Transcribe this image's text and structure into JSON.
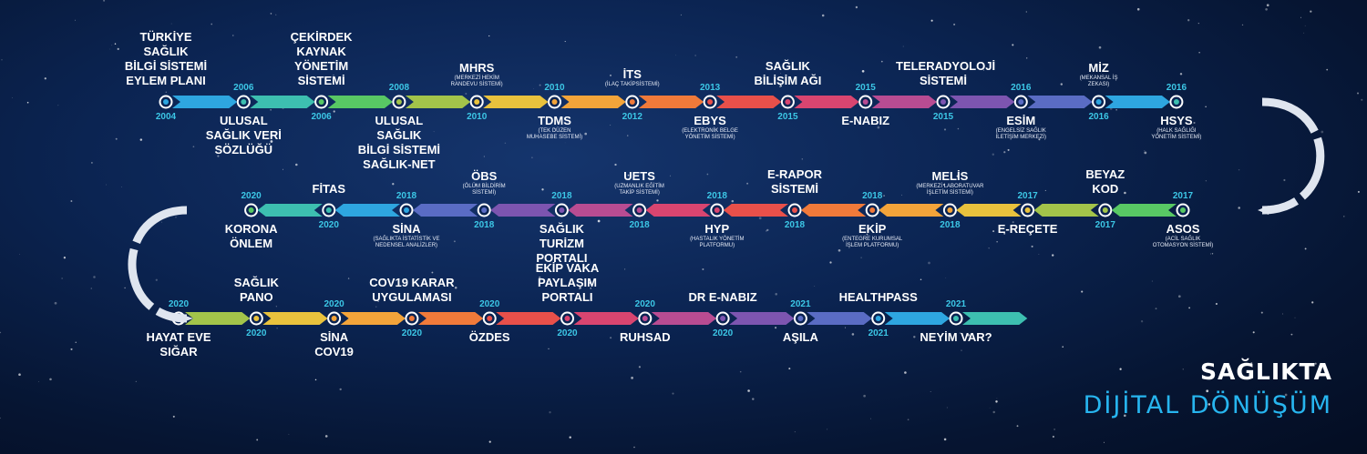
{
  "colors": {
    "background": "#071634",
    "palette": [
      "#2ea6e0",
      "#3dbfb0",
      "#58c864",
      "#a3c44a",
      "#e9c23d",
      "#f3a43a",
      "#f07a3a",
      "#e8504a",
      "#d94570",
      "#b84c92",
      "#7d55b0",
      "#5a6cc4"
    ],
    "brand_dynamic": "#27b5ef"
  },
  "brand": {
    "line1": "SAĞLIKTA",
    "line2": "DİJİTAL DÖNÜŞÜM"
  },
  "rows": [
    {
      "direction": "ltr",
      "items": [
        {
          "name": "TÜRKİYE SAĞLIK\nBİLGİ SİSTEMİ\nEYLEM PLANI",
          "year": "2004",
          "label_pos": "above",
          "year_pos": "below"
        },
        {
          "name": "ULUSAL\nSAĞLIK VERİ\nSÖZLÜĞÜ",
          "year": "2006",
          "label_pos": "below",
          "year_pos": "above"
        },
        {
          "name": "ÇEKİRDEK\nKAYNAK YÖNETİM\nSİSTEMİ",
          "year": "2006",
          "label_pos": "above",
          "year_pos": "below"
        },
        {
          "name": "ULUSAL SAĞLIK\nBİLGİ SİSTEMİ\nSAĞLIK-NET",
          "year": "2008",
          "label_pos": "below",
          "year_pos": "above"
        },
        {
          "name": "MHRS",
          "sub": "(MERKEZİ HEKİM\nRANDEVU SİSTEMİ)",
          "year": "2010",
          "label_pos": "above",
          "year_pos": "below"
        },
        {
          "name": "TDMS",
          "sub": "(TEK DÜZEN\nMUHASEBE SİSTEMİ)",
          "year": "2010",
          "label_pos": "below",
          "year_pos": "above"
        },
        {
          "name": "İTS",
          "sub": "(İLAÇ TAKİPSİSTEMİ)",
          "year": "2012",
          "label_pos": "above",
          "year_pos": "below"
        },
        {
          "name": "EBYS",
          "sub": "(ELEKTRONİK BELGE\nYÖNETİM SİSTEMİ)",
          "year": "2013",
          "label_pos": "below",
          "year_pos": "above"
        },
        {
          "name": "SAĞLIK\nBİLİŞİM AĞI",
          "year": "2015",
          "label_pos": "above",
          "year_pos": "below"
        },
        {
          "name": "E-NABIZ",
          "year": "2015",
          "label_pos": "below",
          "year_pos": "above"
        },
        {
          "name": "TELERADYOLOJİ\nSİSTEMİ",
          "year": "2015",
          "label_pos": "above",
          "year_pos": "below"
        },
        {
          "name": "ESİM",
          "sub": "(ENGELSİZ SAĞLIK\nİLETİŞİM MERKEZİ)",
          "year": "2016",
          "label_pos": "below",
          "year_pos": "above"
        },
        {
          "name": "MİZ",
          "sub": "(MEKANSAL İŞ\nZEKASI)",
          "year": "2016",
          "label_pos": "above",
          "year_pos": "below"
        },
        {
          "name": "HSYS",
          "sub": "(HALK SAĞLIĞI\nYÖNETİM SİSTEMİ)",
          "year": "2016",
          "label_pos": "below",
          "year_pos": "above"
        }
      ]
    },
    {
      "direction": "rtl",
      "items": [
        {
          "name": "ASOS",
          "sub": "(ACİL SAĞLIK\nOTOMASYON SİSTEMİ)",
          "year": "2017",
          "label_pos": "below",
          "year_pos": "above"
        },
        {
          "name": "BEYAZ\nKOD",
          "year": "2017",
          "label_pos": "above",
          "year_pos": "below"
        },
        {
          "name": "E-REÇETE",
          "year": "2017",
          "label_pos": "below",
          "year_pos": "above"
        },
        {
          "name": "MELİS",
          "sub": "(MERKEZİ LABORATUVAR\nİŞLETİM SİSTEMİ)",
          "year": "2018",
          "label_pos": "above",
          "year_pos": "below"
        },
        {
          "name": "EKİP",
          "sub": "(ENTEGRE KURUMSAL\nİŞLEM PLATFORMU)",
          "year": "2018",
          "label_pos": "below",
          "year_pos": "above"
        },
        {
          "name": "E-RAPOR\nSİSTEMİ",
          "year": "2018",
          "label_pos": "above",
          "year_pos": "below"
        },
        {
          "name": "HYP",
          "sub": "(HASTALIK YÖNETİM\nPLATFORMU)",
          "year": "2018",
          "label_pos": "below",
          "year_pos": "above"
        },
        {
          "name": "UETS",
          "sub": "(UZMANLIK EĞİTİM\nTAKİP SİSTEMİ)",
          "year": "2018",
          "label_pos": "above",
          "year_pos": "below"
        },
        {
          "name": "SAĞLIK\nTURİZM\nPORTALI",
          "year": "2018",
          "label_pos": "below",
          "year_pos": "above"
        },
        {
          "name": "ÖBS",
          "sub": "(ÖLÜM BİLDİRİM\nSİSTEMİ)",
          "year": "2018",
          "label_pos": "above",
          "year_pos": "below"
        },
        {
          "name": "SİNA",
          "sub": "(SAĞLIKTA İSTATİSTİK VE\nNEDENSEL ANALİZLER)",
          "year": "2018",
          "label_pos": "below",
          "year_pos": "above"
        },
        {
          "name": "FİTAS",
          "year": "2020",
          "label_pos": "above",
          "year_pos": "below"
        },
        {
          "name": "KORONA\nÖNLEM",
          "year": "2020",
          "label_pos": "below",
          "year_pos": "above"
        }
      ]
    },
    {
      "direction": "ltr",
      "items": [
        {
          "name": "HAYAT EVE\nSIĞAR",
          "year": "2020",
          "label_pos": "below",
          "year_pos": "above"
        },
        {
          "name": "SAĞLIK\nPANO",
          "year": "2020",
          "label_pos": "above",
          "year_pos": "below"
        },
        {
          "name": "SİNA\nCOV19",
          "year": "2020",
          "label_pos": "below",
          "year_pos": "above"
        },
        {
          "name": "COV19 KARAR\nUYGULAMASI",
          "year": "2020",
          "label_pos": "above",
          "year_pos": "below"
        },
        {
          "name": "ÖZDES",
          "year": "2020",
          "label_pos": "below",
          "year_pos": "above"
        },
        {
          "name": "EKİP VAKA\nPAYLAŞIM\nPORTALI",
          "year": "2020",
          "label_pos": "above",
          "year_pos": "below"
        },
        {
          "name": "RUHSAD",
          "year": "2020",
          "label_pos": "below",
          "year_pos": "above"
        },
        {
          "name": "DR E-NABIZ",
          "year": "2020",
          "label_pos": "above",
          "year_pos": "below"
        },
        {
          "name": "AŞILA",
          "year": "2021",
          "label_pos": "below",
          "year_pos": "above"
        },
        {
          "name": "HEALTHPASS",
          "year": "2021",
          "label_pos": "above",
          "year_pos": "below"
        },
        {
          "name": "NEYİM VAR?",
          "year": "2021",
          "label_pos": "below",
          "year_pos": "above"
        }
      ]
    }
  ]
}
